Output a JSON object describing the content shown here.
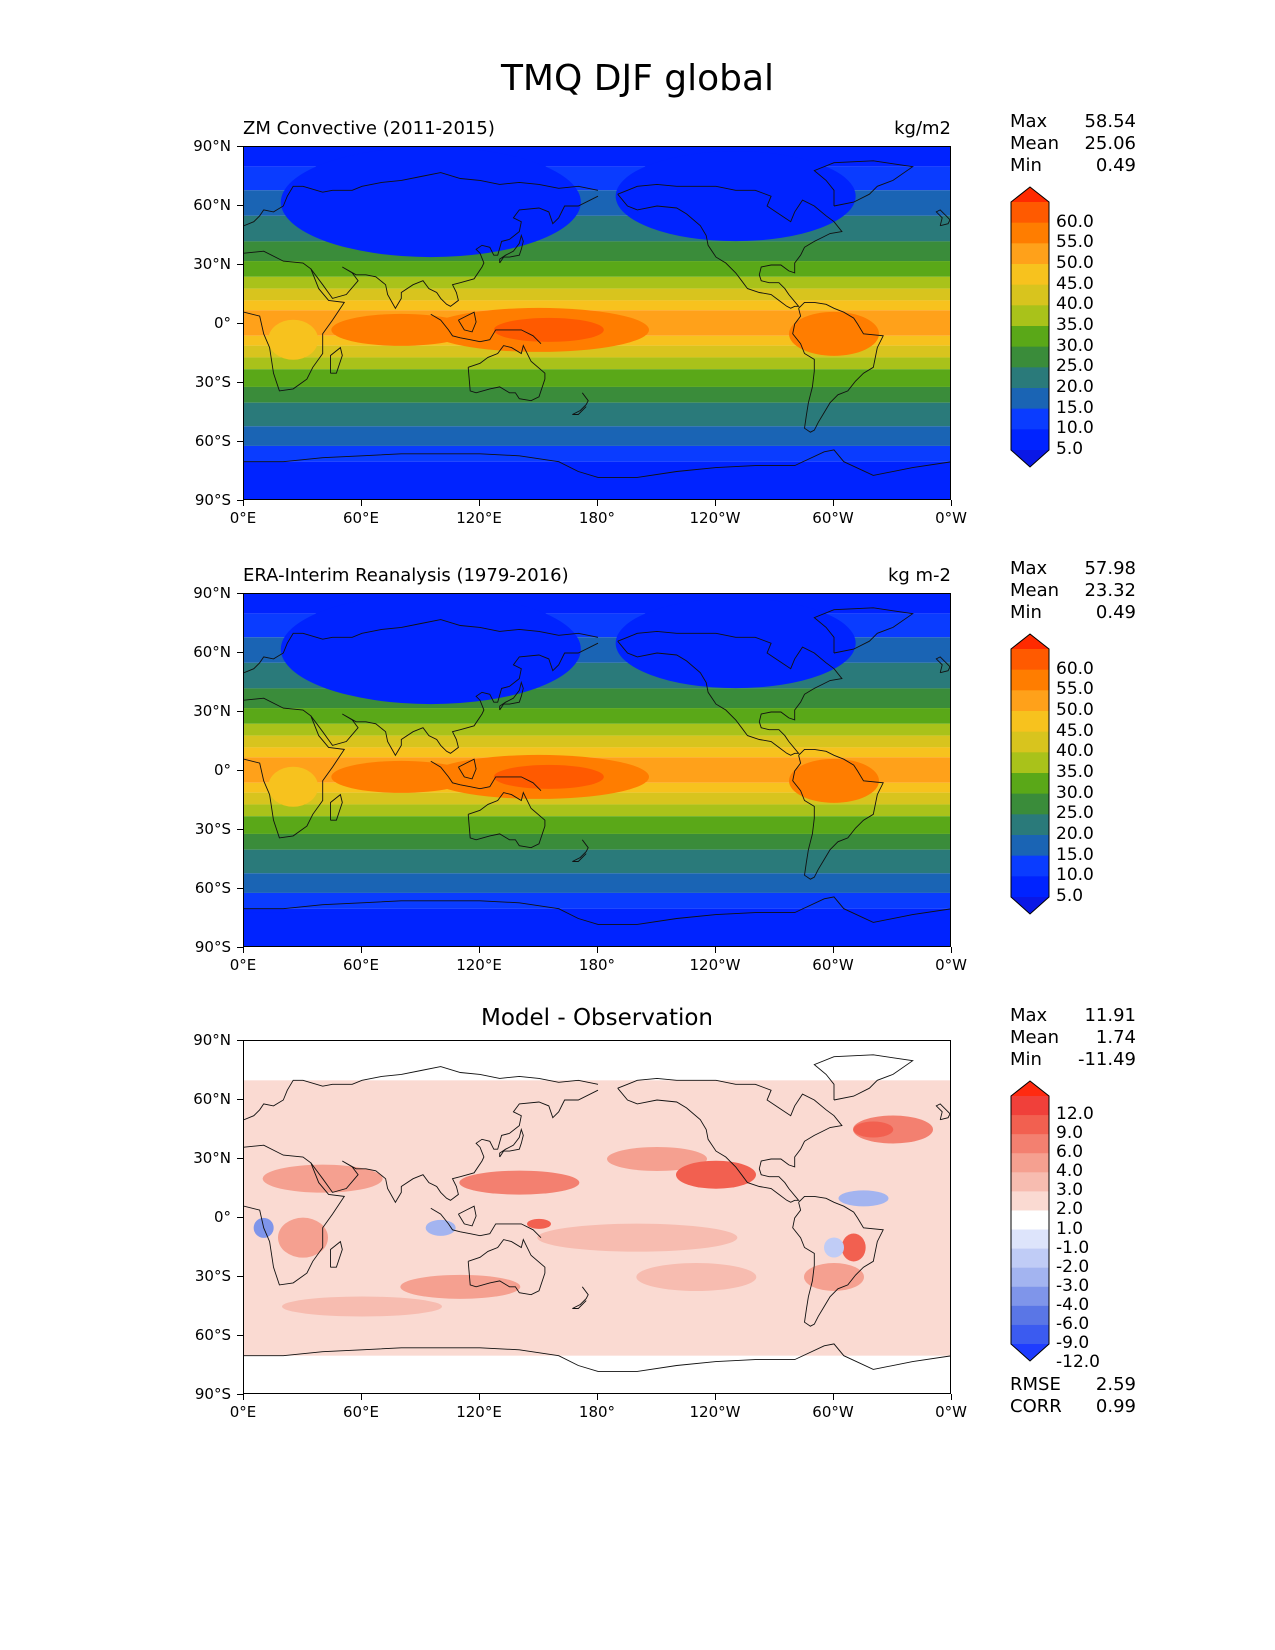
{
  "figure": {
    "title": "TMQ DJF global"
  },
  "panels": [
    {
      "title_left": "ZM Convective (2011-2015)",
      "title_right": "kg/m2",
      "stats": [
        {
          "label": "Max",
          "value": "58.54"
        },
        {
          "label": "Mean",
          "value": "25.06"
        },
        {
          "label": "Min",
          "value": "0.49"
        }
      ]
    },
    {
      "title_left": "ERA-Interim Reanalysis (1979-2016)",
      "title_right": "kg m-2",
      "stats": [
        {
          "label": "Max",
          "value": "57.98"
        },
        {
          "label": "Mean",
          "value": "23.32"
        },
        {
          "label": "Min",
          "value": "0.49"
        }
      ]
    },
    {
      "title_center": "Model - Observation",
      "stats": [
        {
          "label": "Max",
          "value": "11.91"
        },
        {
          "label": "Mean",
          "value": "1.74"
        },
        {
          "label": "Min",
          "value": "-11.49"
        }
      ],
      "metrics": [
        {
          "label": "RMSE",
          "value": "2.59"
        },
        {
          "label": "CORR",
          "value": "0.99"
        }
      ]
    }
  ],
  "axes": {
    "lat_ticks": [
      "90°N",
      "60°N",
      "30°N",
      "0°",
      "30°S",
      "60°S",
      "90°S"
    ],
    "lon_ticks": [
      "0°E",
      "60°E",
      "120°E",
      "180°",
      "120°W",
      "60°W",
      "0°W"
    ]
  },
  "chart_data": [
    {
      "type": "heatmap",
      "title": "ZM Convective (2011-2015)",
      "units": "kg/m2",
      "colorbar_levels": [
        "60.0",
        "55.0",
        "50.0",
        "45.0",
        "40.0",
        "35.0",
        "30.0",
        "25.0",
        "20.0",
        "15.0",
        "10.0",
        "5.0"
      ],
      "colors": [
        "#ff2a00",
        "#ff5a00",
        "#ff7d00",
        "#ffa11a",
        "#f7c21e",
        "#d8c41e",
        "#a9c21a",
        "#5aa818",
        "#3a8c3a",
        "#2a7a7a",
        "#1a64b4",
        "#0a3cff",
        "#0023ff",
        "#0a18e6"
      ],
      "zonal_profile_lat": [
        90,
        60,
        30,
        0,
        -30,
        -60,
        -90
      ],
      "zonal_profile_value": [
        3,
        8,
        22,
        45,
        22,
        10,
        2
      ]
    },
    {
      "type": "heatmap",
      "title": "ERA-Interim Reanalysis (1979-2016)",
      "units": "kg m-2",
      "colorbar_levels": [
        "60.0",
        "55.0",
        "50.0",
        "45.0",
        "40.0",
        "35.0",
        "30.0",
        "25.0",
        "20.0",
        "15.0",
        "10.0",
        "5.0"
      ],
      "colors": [
        "#ff2a00",
        "#ff5a00",
        "#ff7d00",
        "#ffa11a",
        "#f7c21e",
        "#d8c41e",
        "#a9c21a",
        "#5aa818",
        "#3a8c3a",
        "#2a7a7a",
        "#1a64b4",
        "#0a3cff",
        "#0023ff",
        "#0a18e6"
      ],
      "zonal_profile_lat": [
        90,
        60,
        30,
        0,
        -30,
        -60,
        -90
      ],
      "zonal_profile_value": [
        3,
        7,
        20,
        43,
        20,
        9,
        2
      ]
    },
    {
      "type": "heatmap",
      "title": "Model - Observation",
      "colorbar_levels": [
        "12.0",
        "9.0",
        "6.0",
        "4.0",
        "3.0",
        "2.0",
        "1.0",
        "-1.0",
        "-2.0",
        "-3.0",
        "-4.0",
        "-6.0",
        "-9.0",
        "-12.0"
      ],
      "colors": [
        "#ff2a10",
        "#f0403a",
        "#f26050",
        "#f38070",
        "#f5a090",
        "#f7bcb0",
        "#fadad2",
        "#ffffff",
        "#dde4fb",
        "#c0ccf6",
        "#a3b4f0",
        "#7f95ea",
        "#5a76e6",
        "#3b5bf0",
        "#1e3cff"
      ]
    }
  ]
}
